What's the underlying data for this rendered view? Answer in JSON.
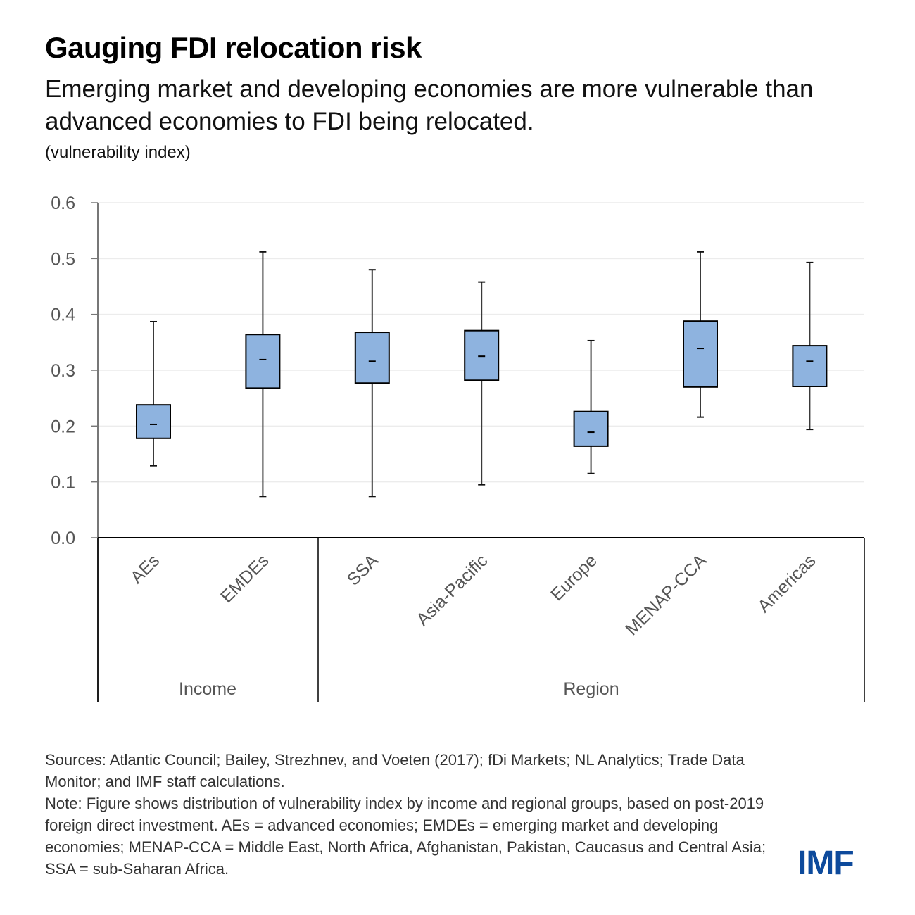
{
  "title": "Gauging FDI relocation risk",
  "subtitle": "Emerging market and developing economies are more vulnerable than advanced economies to FDI being relocated.",
  "unit_label": "(vulnerability index)",
  "notes": {
    "sources": "Sources: Atlantic Council; Bailey, Strezhnev, and Voeten (2017); fDi Markets; NL Analytics; Trade Data Monitor; and IMF staff calculations.",
    "note": "Note: Figure shows distribution of vulnerability index by income and regional groups, based on post-2019 foreign direct investment. AEs = advanced economies; EMDEs = emerging market and developing economies; MENAP-CCA = Middle East, North Africa, Afghanistan, Pakistan, Caucasus and Central Asia; SSA = sub-Saharan Africa."
  },
  "logo": "IMF",
  "colors": {
    "box_fill": "#8eb3df",
    "logo": "#0d4a9c"
  },
  "chart_data": {
    "type": "boxplot",
    "title": "Gauging FDI relocation risk",
    "ylabel": "(vulnerability index)",
    "ylim": [
      0,
      0.6
    ],
    "yticks": [
      "0.0",
      "0.1",
      "0.2",
      "0.3",
      "0.4",
      "0.5",
      "0.6"
    ],
    "ytick_values": [
      0,
      0.1,
      0.2,
      0.3,
      0.4,
      0.5,
      0.6
    ],
    "grid": true,
    "categories": [
      "AEs",
      "EMDEs",
      "SSA",
      "Asia-Pacific",
      "Europe",
      "MENAP-CCA",
      "Americas"
    ],
    "groups": [
      {
        "label": "Income",
        "categories": [
          "AEs",
          "EMDEs"
        ]
      },
      {
        "label": "Region",
        "categories": [
          "SSA",
          "Asia-Pacific",
          "Europe",
          "MENAP-CCA",
          "Americas"
        ]
      }
    ],
    "series": [
      {
        "name": "AEs",
        "min": 0.129,
        "q1": 0.178,
        "median": 0.203,
        "q3": 0.238,
        "max": 0.387
      },
      {
        "name": "EMDEs",
        "min": 0.074,
        "q1": 0.268,
        "median": 0.319,
        "q3": 0.364,
        "max": 0.512
      },
      {
        "name": "SSA",
        "min": 0.074,
        "q1": 0.277,
        "median": 0.316,
        "q3": 0.368,
        "max": 0.48
      },
      {
        "name": "Asia-Pacific",
        "min": 0.095,
        "q1": 0.282,
        "median": 0.325,
        "q3": 0.371,
        "max": 0.458
      },
      {
        "name": "Europe",
        "min": 0.115,
        "q1": 0.164,
        "median": 0.189,
        "q3": 0.226,
        "max": 0.353
      },
      {
        "name": "MENAP-CCA",
        "min": 0.216,
        "q1": 0.27,
        "median": 0.339,
        "q3": 0.388,
        "max": 0.512
      },
      {
        "name": "Americas",
        "min": 0.194,
        "q1": 0.271,
        "median": 0.316,
        "q3": 0.344,
        "max": 0.493
      }
    ]
  }
}
